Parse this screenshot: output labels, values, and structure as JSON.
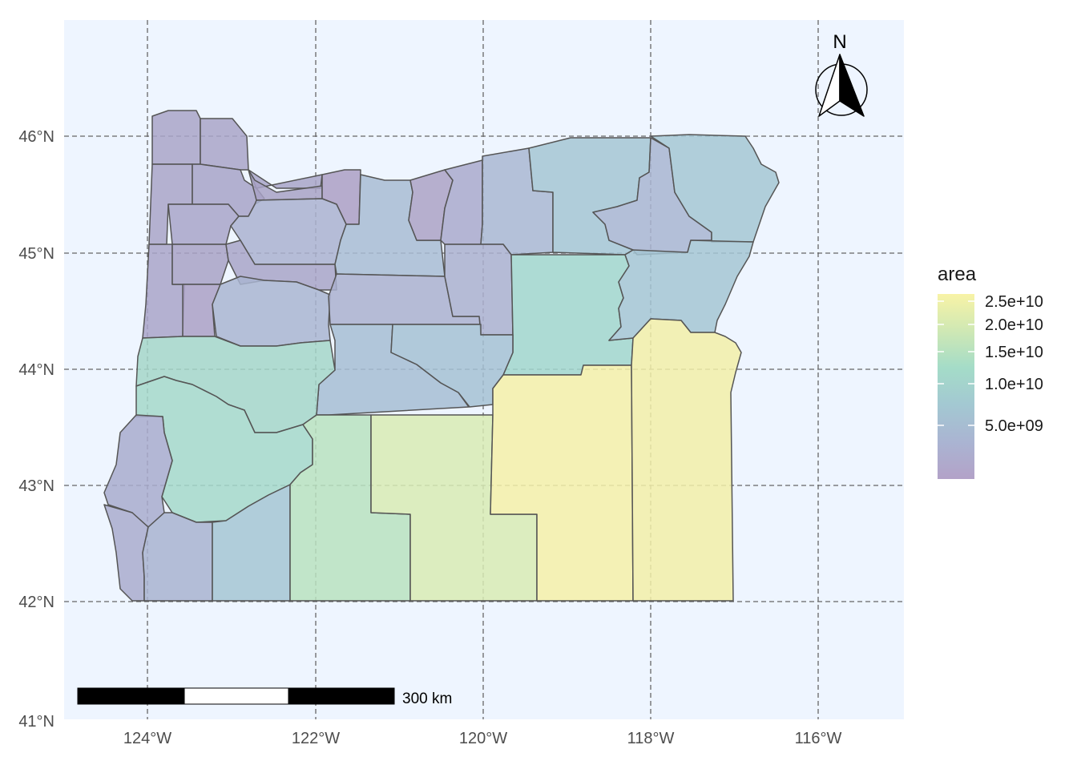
{
  "map": {
    "legend": {
      "title": "area",
      "labels": [
        "2.5e+10",
        "2.0e+10",
        "1.5e+10",
        "1.0e+10",
        "5.0e+09"
      ],
      "colormap": "viridis",
      "opacity": 0.3
    },
    "lat_labels": [
      "46°N",
      "45°N",
      "44°N",
      "43°N",
      "42°N",
      "41°N"
    ],
    "lon_labels": [
      "124°W",
      "122°W",
      "120°W",
      "118°W",
      "116°W"
    ],
    "scale_bar": {
      "label": "300 km"
    },
    "north_arrow": {
      "label": "N"
    },
    "colors": {
      "panel_background": "#eef5ff",
      "county_border": "#555555",
      "grid": "#666666",
      "scale_black": "#000000",
      "scale_white": "#ffffff"
    }
  }
}
